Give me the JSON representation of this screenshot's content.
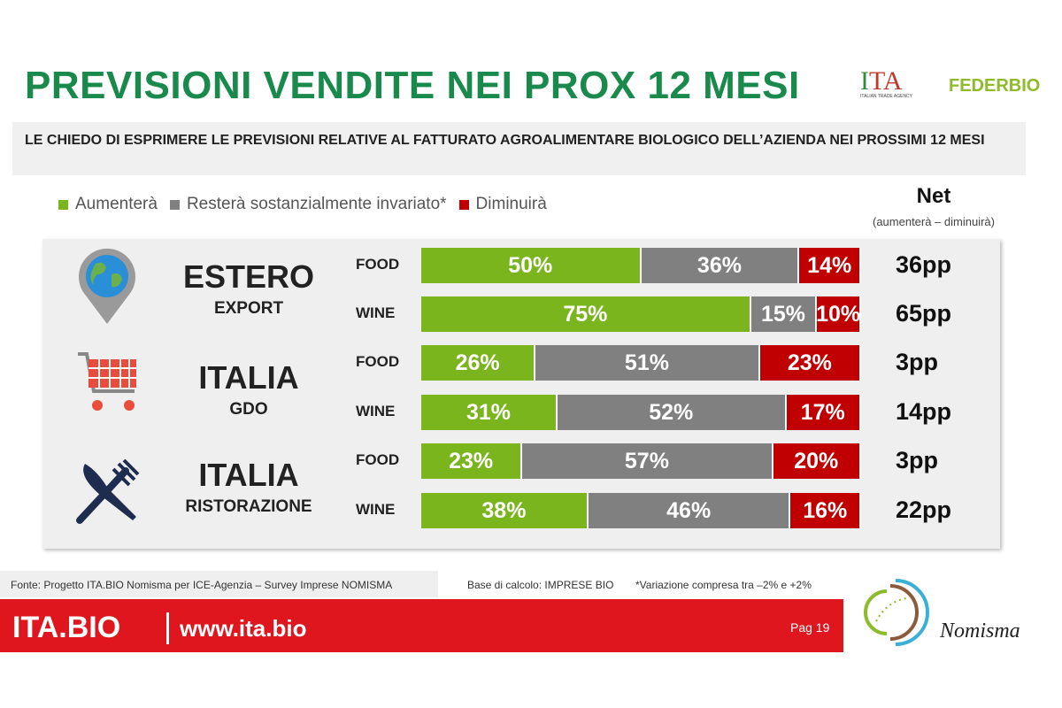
{
  "title": "PREVISIONI VENDITE NEI PROX 12 MESI",
  "question": "LE CHIEDO DI ESPRIMERE LE PREVISIONI RELATIVE AL FATTURATO  AGROALIMENTARE BIOLOGICO DELL’AZIENDA NEI PROSSIMI 12 MESI",
  "logos": {
    "ita": "ITA",
    "ita_sub": "ITALIAN TRADE AGENCY",
    "federbio": "FEDERBIO",
    "nomisma": "Nomisma"
  },
  "net": {
    "title": "Net",
    "subtitle": "(aumenterà – diminuirà)"
  },
  "groups": [
    {
      "title": "ESTERO",
      "subtitle": "EXPORT",
      "icon": "globe-pin-icon"
    },
    {
      "title": "ITALIA",
      "subtitle": "GDO",
      "icon": "shopping-cart-icon"
    },
    {
      "title": "ITALIA",
      "subtitle": "RISTORAZIONE",
      "icon": "fork-knife-icon"
    }
  ],
  "chart_data": {
    "type": "bar",
    "orientation": "horizontal-stacked-100",
    "categories": [
      "FOOD",
      "WINE",
      "FOOD",
      "WINE",
      "FOOD",
      "WINE"
    ],
    "series": [
      {
        "name": "Aumenterà",
        "color": "#7ab51d",
        "values": [
          50,
          75,
          26,
          31,
          23,
          38
        ]
      },
      {
        "name": "Resterà sostanzialmente invariato*",
        "color": "#808080",
        "values": [
          36,
          15,
          51,
          52,
          57,
          46
        ]
      },
      {
        "name": "Diminuirà",
        "color": "#c00000",
        "values": [
          14,
          10,
          23,
          17,
          20,
          16
        ]
      }
    ],
    "labels": [
      [
        "50%",
        "36%",
        "14%"
      ],
      [
        "75%",
        "15%",
        "10%"
      ],
      [
        "26%",
        "51%",
        "23%"
      ],
      [
        "31%",
        "52%",
        "17%"
      ],
      [
        "23%",
        "57%",
        "20%"
      ],
      [
        "38%",
        "46%",
        "16%"
      ]
    ],
    "net": [
      "36pp",
      "65pp",
      "3pp",
      "14pp",
      "3pp",
      "22pp"
    ],
    "legend_position": "top"
  },
  "footer": {
    "source": "Fonte: Progetto ITA.BIO Nomisma per ICE-Agenzia – Survey Imprese NOMISMA",
    "base": "Base di calcolo: IMPRESE BIO",
    "note": "*Variazione compresa tra –2% e +2%",
    "brand": "ITA.BIO",
    "url": "www.ita.bio",
    "page": "Pag 19"
  }
}
